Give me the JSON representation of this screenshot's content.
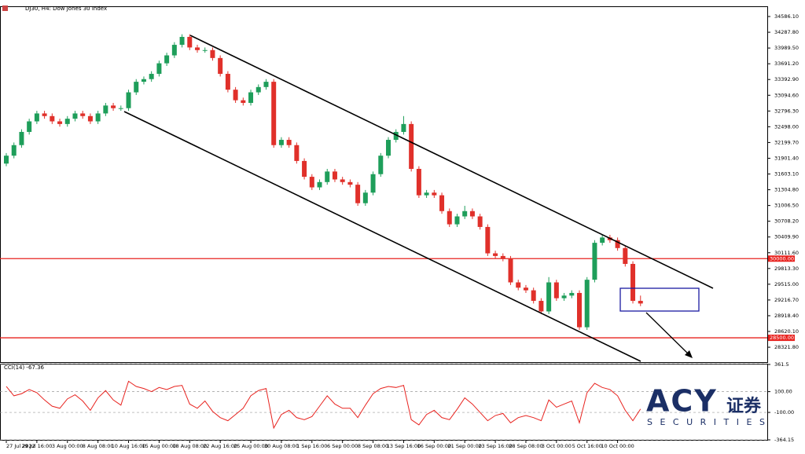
{
  "chart_data": [
    {
      "type": "candlestick",
      "title": "DJ30, H4: Dow Jones 30 Index",
      "categories": [
        "27 Jul 2022",
        null,
        null,
        null,
        "29 Jul 16:00",
        null,
        null,
        null,
        "3 Aug 00:00",
        null,
        null,
        null,
        "8 Aug 08:00",
        null,
        null,
        null,
        "10 Aug 16:00",
        null,
        null,
        null,
        "15 Aug 00:00",
        null,
        null,
        null,
        "18 Aug 08:00",
        null,
        null,
        null,
        "22 Aug 16:00",
        null,
        null,
        null,
        "25 Aug 00:00",
        null,
        null,
        null,
        "30 Aug 08:00",
        null,
        null,
        null,
        "1 Sep 16:00",
        null,
        null,
        null,
        "6 Sep 00:00",
        null,
        null,
        null,
        "8 Sep 08:00",
        null,
        null,
        null,
        "13 Sep 16:00",
        null,
        null,
        null,
        "16 Sep 00:00",
        null,
        null,
        null,
        "21 Sep 00:00",
        null,
        null,
        null,
        "23 Sep 16:00",
        null,
        null,
        null,
        "28 Sep 08:00",
        null,
        null,
        null,
        "3 Oct 00:00",
        null,
        null,
        null,
        "5 Oct 16:00",
        null,
        null,
        null,
        "10 Oct 00:00",
        null,
        null,
        null
      ],
      "open": [
        31800,
        31950,
        32150,
        32400,
        32600,
        32750,
        32700,
        32600,
        32550,
        32650,
        32750,
        32700,
        32600,
        32750,
        32900,
        32850,
        32850,
        33150,
        33350,
        33400,
        33500,
        33700,
        33850,
        34050,
        34200,
        34000,
        33950,
        33950,
        33800,
        33500,
        33200,
        33000,
        32950,
        33150,
        33250,
        33350,
        32150,
        32250,
        32150,
        31850,
        31550,
        31350,
        31450,
        31650,
        31500,
        31450,
        31400,
        31050,
        31250,
        31600,
        31950,
        32250,
        32400,
        32550,
        31700,
        31200,
        31250,
        31200,
        30900,
        30650,
        30800,
        30900,
        30800,
        30600,
        30100,
        30050,
        30000,
        29550,
        29450,
        29400,
        29200,
        29000,
        29550,
        29250,
        29300,
        29350,
        28700,
        29600,
        30300,
        30400,
        30350,
        30200,
        29900,
        29200
      ],
      "high": [
        32000,
        32200,
        32450,
        32650,
        32800,
        32800,
        32750,
        32650,
        32700,
        32800,
        32800,
        32750,
        32800,
        32950,
        32950,
        32900,
        33200,
        33400,
        33450,
        33550,
        33750,
        33900,
        34100,
        34250,
        34250,
        34050,
        34000,
        34000,
        33850,
        33550,
        33250,
        33050,
        33200,
        33300,
        33400,
        33400,
        32300,
        32300,
        32200,
        31900,
        31600,
        31500,
        31700,
        31700,
        31550,
        31500,
        31450,
        31300,
        31650,
        32000,
        32300,
        32450,
        32700,
        32600,
        31750,
        31300,
        31300,
        31250,
        30950,
        30850,
        31000,
        30950,
        30850,
        30650,
        30150,
        30100,
        30050,
        29600,
        29500,
        29450,
        29250,
        29650,
        29600,
        29350,
        29400,
        29400,
        29650,
        30350,
        30450,
        30450,
        30400,
        30250,
        29950,
        29300
      ],
      "low": [
        31750,
        31900,
        32100,
        32350,
        32550,
        32650,
        32550,
        32500,
        32500,
        32600,
        32650,
        32550,
        32550,
        32700,
        32800,
        32800,
        32800,
        33100,
        33300,
        33350,
        33450,
        33650,
        33800,
        34000,
        33950,
        33900,
        33900,
        33750,
        33450,
        33150,
        32950,
        32900,
        32900,
        33100,
        33200,
        32100,
        32100,
        32100,
        31800,
        31500,
        31300,
        31300,
        31400,
        31450,
        31400,
        31350,
        31000,
        31000,
        31200,
        31550,
        31900,
        32200,
        32350,
        31650,
        31150,
        31150,
        31150,
        30850,
        30600,
        30600,
        30750,
        30750,
        30550,
        30050,
        30000,
        29950,
        29500,
        29400,
        29350,
        29150,
        28950,
        28950,
        29200,
        29200,
        29250,
        28650,
        28650,
        29550,
        30250,
        30300,
        30150,
        29850,
        29150,
        29100
      ],
      "close": [
        31950,
        32150,
        32400,
        32600,
        32750,
        32700,
        32600,
        32550,
        32650,
        32750,
        32700,
        32600,
        32750,
        32900,
        32850,
        32850,
        33150,
        33350,
        33400,
        33500,
        33700,
        33850,
        34050,
        34200,
        34000,
        33950,
        33950,
        33800,
        33500,
        33200,
        33000,
        32950,
        33150,
        33250,
        33350,
        32150,
        32250,
        32150,
        31850,
        31550,
        31350,
        31450,
        31650,
        31500,
        31450,
        31400,
        31050,
        31250,
        31600,
        31950,
        32250,
        32400,
        32550,
        31700,
        31200,
        31250,
        31200,
        30900,
        30650,
        30800,
        30900,
        30800,
        30600,
        30100,
        30050,
        30000,
        29550,
        29450,
        29400,
        29200,
        29000,
        29550,
        29250,
        29300,
        29350,
        28700,
        29600,
        30300,
        30400,
        30350,
        30200,
        29900,
        29200,
        29150
      ],
      "up_color": "#1e9e5a",
      "down_color": "#e0302a",
      "ylim": [
        28040,
        34765
      ],
      "yticks": [
        {
          "value": 34586.1,
          "label": "34586.10"
        },
        {
          "value": 34287.8,
          "label": "34287.80"
        },
        {
          "value": 33989.5,
          "label": "33989.50"
        },
        {
          "value": 33691.2,
          "label": "33691.20"
        },
        {
          "value": 33392.9,
          "label": "33392.90"
        },
        {
          "value": 33094.6,
          "label": "33094.60"
        },
        {
          "value": 32796.3,
          "label": "32796.30"
        },
        {
          "value": 32498,
          "label": "32498.00"
        },
        {
          "value": 32199.7,
          "label": "32199.70"
        },
        {
          "value": 31901.4,
          "label": "31901.40"
        },
        {
          "value": 31603.1,
          "label": "31603.10"
        },
        {
          "value": 31304.8,
          "label": "31304.80"
        },
        {
          "value": 31006.5,
          "label": "31006.50"
        },
        {
          "value": 30708.2,
          "label": "30708.20"
        },
        {
          "value": 30409.9,
          "label": "30409.90"
        },
        {
          "value": 30111.6,
          "label": "30111.60"
        },
        {
          "value": 29813.3,
          "label": "29813.30"
        },
        {
          "value": 29515,
          "label": "29515.00"
        },
        {
          "value": 29216.7,
          "label": "29216.70"
        },
        {
          "value": 28918.4,
          "label": "28918.40"
        },
        {
          "value": 28620.1,
          "label": "28620.10"
        },
        {
          "value": 28321.8,
          "label": "28321.80"
        }
      ],
      "hlines": [
        {
          "value": 30000,
          "label": "30000.00"
        },
        {
          "value": 28500,
          "label": "28500.00"
        }
      ],
      "hline_color": "#e8231f"
    },
    {
      "type": "line",
      "title": "CCI(14) -67.36",
      "color": "#e8231f",
      "values": [
        150,
        60,
        80,
        120,
        90,
        20,
        -40,
        -60,
        30,
        70,
        10,
        -80,
        40,
        110,
        20,
        -30,
        200,
        150,
        130,
        100,
        140,
        120,
        150,
        160,
        -20,
        -60,
        10,
        -90,
        -150,
        -180,
        -120,
        -60,
        60,
        110,
        130,
        -250,
        -120,
        -80,
        -150,
        -170,
        -140,
        -40,
        60,
        -20,
        -60,
        -60,
        -150,
        -30,
        80,
        130,
        150,
        140,
        160,
        -170,
        -220,
        -120,
        -80,
        -150,
        -170,
        -70,
        40,
        -20,
        -100,
        -180,
        -130,
        -110,
        -200,
        -150,
        -130,
        -150,
        -180,
        20,
        -50,
        -20,
        10,
        -200,
        90,
        180,
        140,
        120,
        60,
        -80,
        -180,
        -67.36
      ],
      "ylim": [
        -364.15,
        361.5
      ],
      "yticks": [
        361.5,
        {
          "value": 100,
          "label": "100.00"
        },
        {
          "value": -100,
          "label": "-100.00"
        },
        -364.15
      ]
    }
  ],
  "logo": {
    "brand": "ACY",
    "chinese": "证券",
    "sub": "SECURITIES"
  }
}
